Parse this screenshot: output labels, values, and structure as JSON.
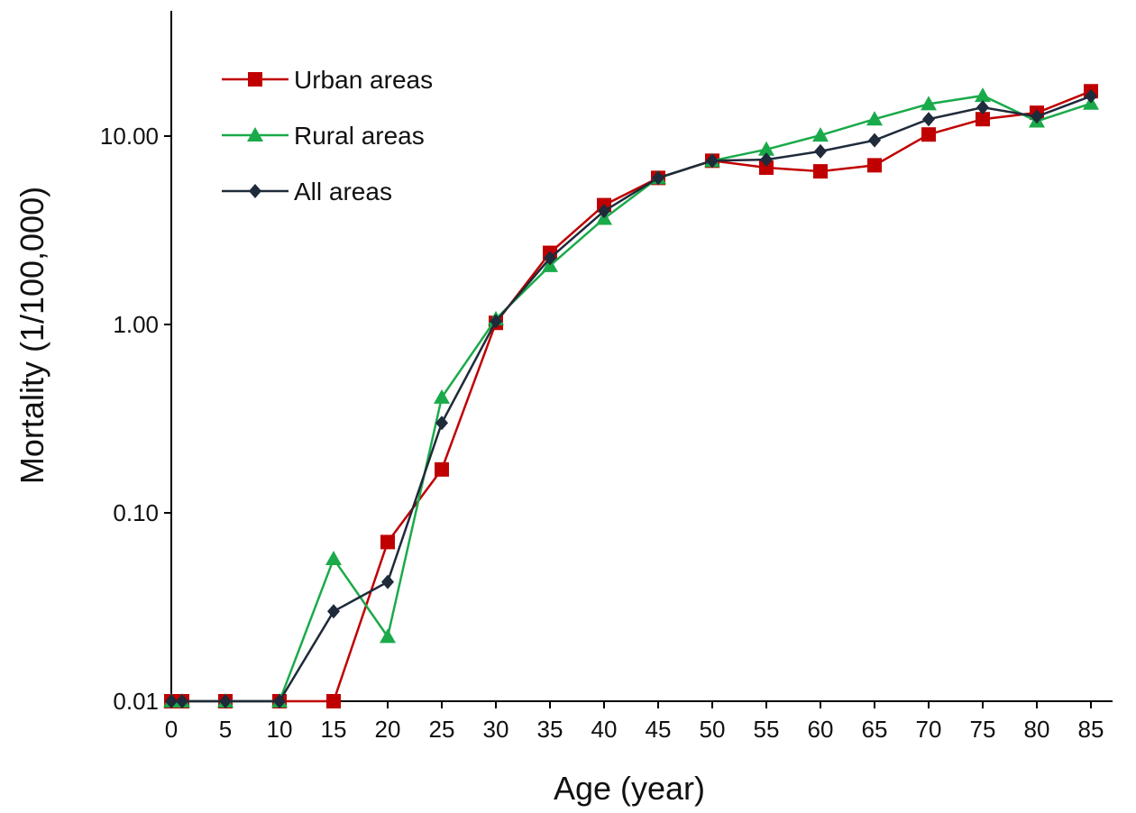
{
  "chart_data": {
    "type": "line",
    "title": "",
    "xlabel": "Age (year)",
    "ylabel": "Mortality  (1/100,000)",
    "yscale": "log",
    "ylim": [
      0.01,
      40
    ],
    "xlim": [
      0,
      85
    ],
    "x_ticks": [
      "0",
      "5",
      "10",
      "15",
      "20",
      "25",
      "30",
      "35",
      "40",
      "45",
      "50",
      "55",
      "60",
      "65",
      "70",
      "75",
      "80",
      "85"
    ],
    "y_ticks": [
      {
        "value": 0.01,
        "label": "0.01"
      },
      {
        "value": 0.1,
        "label": "0.10"
      },
      {
        "value": 1,
        "label": "1.00"
      },
      {
        "value": 10,
        "label": "10.00"
      }
    ],
    "grid": false,
    "legend_position": "top-left",
    "x": [
      0,
      1,
      5,
      10,
      15,
      20,
      25,
      30,
      35,
      40,
      45,
      50,
      55,
      60,
      65,
      70,
      75,
      80,
      85
    ],
    "series": [
      {
        "name": "Urban areas",
        "color": "#c00000",
        "marker": "square",
        "values": [
          0.01,
          0.01,
          0.01,
          0.01,
          0.01,
          0.07,
          0.17,
          1.02,
          2.4,
          4.3,
          6.0,
          7.4,
          6.8,
          6.5,
          7.0,
          10.2,
          12.3,
          13.3,
          17.3
        ]
      },
      {
        "name": "Rural areas",
        "color": "#1aaa4a",
        "marker": "triangle",
        "values": [
          0.01,
          0.01,
          0.01,
          0.01,
          0.057,
          0.022,
          0.41,
          1.07,
          2.05,
          3.65,
          6.0,
          7.4,
          8.5,
          10.1,
          12.3,
          14.8,
          16.4,
          12.0,
          14.9
        ]
      },
      {
        "name": "All areas",
        "color": "#1f2a3a",
        "marker": "diamond",
        "values": [
          0.01,
          0.01,
          0.01,
          0.01,
          0.03,
          0.043,
          0.3,
          1.04,
          2.25,
          4.0,
          6.0,
          7.4,
          7.5,
          8.3,
          9.5,
          12.3,
          14.2,
          12.7,
          16.3
        ]
      }
    ]
  }
}
